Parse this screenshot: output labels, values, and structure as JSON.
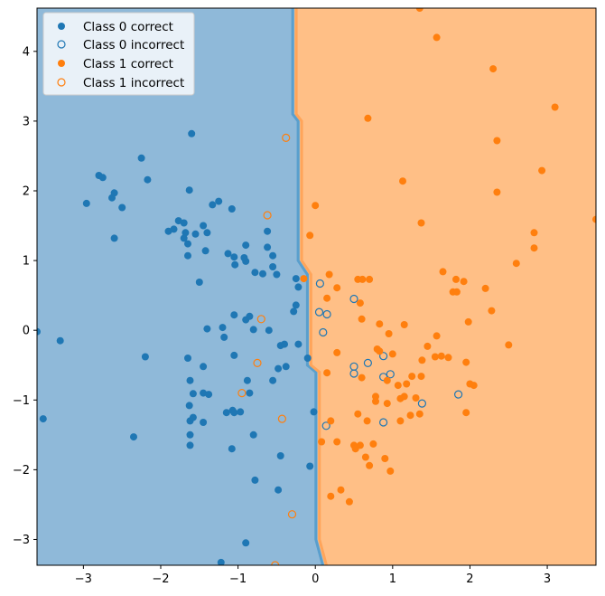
{
  "chart_data": {
    "type": "scatter",
    "title": "",
    "xlabel": "",
    "ylabel": "",
    "xlim": [
      -3.6,
      3.63
    ],
    "ylim": [
      -3.37,
      4.62
    ],
    "xticks": [
      -3,
      -2,
      -1,
      0,
      1,
      2,
      3
    ],
    "yticks": [
      -3,
      -2,
      -1,
      0,
      1,
      2,
      3,
      4
    ],
    "grid": false,
    "legend_position": "top-left",
    "colors": {
      "class0": "#1f77b4",
      "class1": "#ff7f0e",
      "region0": "#8fb9d9",
      "region1": "#ffbf86",
      "boundary0": "#5a9fcd",
      "boundary1": "#ffa55a"
    },
    "decision_boundary": [
      [
        -0.27,
        4.62
      ],
      [
        -0.27,
        3.1
      ],
      [
        -0.2,
        3.0
      ],
      [
        -0.2,
        1.0
      ],
      [
        -0.08,
        0.8
      ],
      [
        -0.08,
        -0.5
      ],
      [
        0.03,
        -0.6
      ],
      [
        0.03,
        -3.0
      ],
      [
        0.12,
        -3.37
      ]
    ],
    "series": [
      {
        "name": "Class 0 correct",
        "color": "#1f77b4",
        "marker": "filled",
        "points": [
          [
            -3.6,
            -0.02
          ],
          [
            -3.52,
            -1.27
          ],
          [
            -3.3,
            -0.15
          ],
          [
            -2.96,
            1.82
          ],
          [
            -2.8,
            2.22
          ],
          [
            -2.75,
            2.19
          ],
          [
            -2.6,
            1.32
          ],
          [
            -2.63,
            1.9
          ],
          [
            -2.6,
            1.97
          ],
          [
            -2.5,
            1.76
          ],
          [
            -2.35,
            -1.53
          ],
          [
            -2.25,
            2.47
          ],
          [
            -2.2,
            -0.38
          ],
          [
            -2.17,
            2.16
          ],
          [
            -1.9,
            1.42
          ],
          [
            -1.83,
            1.45
          ],
          [
            -1.77,
            1.57
          ],
          [
            -1.7,
            1.54
          ],
          [
            -1.7,
            1.32
          ],
          [
            -1.68,
            1.4
          ],
          [
            -1.65,
            1.24
          ],
          [
            -1.65,
            1.07
          ],
          [
            -1.63,
            2.01
          ],
          [
            -1.6,
            2.82
          ],
          [
            -1.55,
            1.38
          ],
          [
            -1.5,
            0.69
          ],
          [
            -1.45,
            1.5
          ],
          [
            -1.42,
            1.14
          ],
          [
            -1.4,
            1.4
          ],
          [
            -1.33,
            1.8
          ],
          [
            -1.25,
            1.85
          ],
          [
            -1.65,
            -0.4
          ],
          [
            -1.62,
            -0.72
          ],
          [
            -1.58,
            -0.91
          ],
          [
            -1.45,
            -0.52
          ],
          [
            -1.45,
            -0.9
          ],
          [
            -1.4,
            0.02
          ],
          [
            -1.38,
            -0.92
          ],
          [
            -1.63,
            -1.08
          ],
          [
            -1.62,
            -1.3
          ],
          [
            -1.58,
            -1.25
          ],
          [
            -1.62,
            -1.5
          ],
          [
            -1.62,
            -1.65
          ],
          [
            -1.45,
            -1.32
          ],
          [
            -1.22,
            -3.33
          ],
          [
            -1.2,
            0.04
          ],
          [
            -1.18,
            -0.1
          ],
          [
            -1.15,
            -1.18
          ],
          [
            -1.13,
            1.1
          ],
          [
            -1.08,
            1.74
          ],
          [
            -1.05,
            1.05
          ],
          [
            -1.04,
            0.94
          ],
          [
            -0.9,
            0.99
          ],
          [
            -1.05,
            0.22
          ],
          [
            -1.05,
            -0.36
          ],
          [
            -1.07,
            -1.15
          ],
          [
            -1.05,
            -1.18
          ],
          [
            -0.97,
            -1.17
          ],
          [
            -1.08,
            -1.7
          ],
          [
            -0.9,
            1.22
          ],
          [
            -0.92,
            1.04
          ],
          [
            -0.9,
            0.15
          ],
          [
            -0.85,
            0.2
          ],
          [
            -0.8,
            0.01
          ],
          [
            -0.88,
            -0.72
          ],
          [
            -0.85,
            -0.9
          ],
          [
            -0.8,
            -1.5
          ],
          [
            -0.78,
            -2.15
          ],
          [
            -0.9,
            -3.05
          ],
          [
            -0.78,
            0.83
          ],
          [
            -0.68,
            0.81
          ],
          [
            -0.62,
            1.42
          ],
          [
            -0.62,
            1.19
          ],
          [
            -0.55,
            1.07
          ],
          [
            -0.55,
            0.91
          ],
          [
            -0.5,
            0.8
          ],
          [
            -0.55,
            -0.72
          ],
          [
            -0.48,
            -0.55
          ],
          [
            -0.45,
            -0.22
          ],
          [
            -0.4,
            -0.2
          ],
          [
            -0.38,
            -0.52
          ],
          [
            -0.45,
            -1.8
          ],
          [
            -0.48,
            -2.29
          ],
          [
            -0.6,
            0.0
          ],
          [
            -0.25,
            0.74
          ],
          [
            -0.22,
            0.62
          ],
          [
            -0.25,
            0.36
          ],
          [
            -0.28,
            0.27
          ],
          [
            -0.22,
            -0.2
          ],
          [
            -0.1,
            -0.4
          ],
          [
            -0.07,
            -1.95
          ],
          [
            -0.02,
            -1.17
          ]
        ]
      },
      {
        "name": "Class 0 incorrect",
        "color": "#1f77b4",
        "marker": "hollow",
        "points": [
          [
            0.06,
            0.67
          ],
          [
            0.05,
            0.26
          ],
          [
            0.15,
            0.23
          ],
          [
            0.1,
            -0.03
          ],
          [
            0.14,
            -1.37
          ],
          [
            0.5,
            0.45
          ],
          [
            0.5,
            -0.52
          ],
          [
            0.5,
            -0.62
          ],
          [
            0.68,
            -0.47
          ],
          [
            0.88,
            -0.37
          ],
          [
            0.88,
            -0.67
          ],
          [
            0.97,
            -0.63
          ],
          [
            0.88,
            -1.32
          ],
          [
            1.38,
            -1.05
          ],
          [
            1.85,
            -0.92
          ]
        ]
      },
      {
        "name": "Class 1 correct",
        "color": "#ff7f0e",
        "marker": "filled",
        "points": [
          [
            1.35,
            4.62
          ],
          [
            1.57,
            4.2
          ],
          [
            2.3,
            3.75
          ],
          [
            3.1,
            3.2
          ],
          [
            0.68,
            3.04
          ],
          [
            2.35,
            2.72
          ],
          [
            2.93,
            2.29
          ],
          [
            1.13,
            2.14
          ],
          [
            2.35,
            1.98
          ],
          [
            0.0,
            1.79
          ],
          [
            1.37,
            1.54
          ],
          [
            3.63,
            1.59
          ],
          [
            2.83,
            1.4
          ],
          [
            -0.07,
            1.36
          ],
          [
            2.83,
            1.18
          ],
          [
            2.6,
            0.96
          ],
          [
            1.65,
            0.84
          ],
          [
            1.82,
            0.73
          ],
          [
            1.92,
            0.7
          ],
          [
            0.55,
            0.73
          ],
          [
            0.61,
            0.73
          ],
          [
            0.7,
            0.73
          ],
          [
            0.18,
            0.8
          ],
          [
            -0.15,
            0.74
          ],
          [
            2.2,
            0.6
          ],
          [
            0.28,
            0.61
          ],
          [
            1.78,
            0.55
          ],
          [
            1.83,
            0.55
          ],
          [
            0.15,
            0.46
          ],
          [
            0.58,
            0.39
          ],
          [
            2.28,
            0.28
          ],
          [
            0.6,
            0.16
          ],
          [
            1.98,
            0.12
          ],
          [
            0.83,
            0.09
          ],
          [
            1.15,
            0.08
          ],
          [
            0.95,
            -0.05
          ],
          [
            1.57,
            -0.08
          ],
          [
            0.28,
            -0.32
          ],
          [
            0.8,
            -0.27
          ],
          [
            0.83,
            -0.3
          ],
          [
            1.0,
            -0.34
          ],
          [
            1.45,
            -0.23
          ],
          [
            2.5,
            -0.21
          ],
          [
            1.55,
            -0.38
          ],
          [
            1.63,
            -0.37
          ],
          [
            1.72,
            -0.39
          ],
          [
            1.38,
            -0.43
          ],
          [
            1.95,
            -0.46
          ],
          [
            0.15,
            -0.61
          ],
          [
            0.6,
            -0.68
          ],
          [
            0.93,
            -0.72
          ],
          [
            1.07,
            -0.79
          ],
          [
            1.18,
            -0.77
          ],
          [
            1.25,
            -0.66
          ],
          [
            1.37,
            -0.66
          ],
          [
            2.0,
            -0.77
          ],
          [
            2.05,
            -0.79
          ],
          [
            0.78,
            -0.95
          ],
          [
            1.15,
            -0.95
          ],
          [
            1.1,
            -0.98
          ],
          [
            1.3,
            -0.97
          ],
          [
            0.78,
            -1.02
          ],
          [
            0.93,
            -1.05
          ],
          [
            1.35,
            -1.2
          ],
          [
            1.23,
            -1.22
          ],
          [
            1.95,
            -1.18
          ],
          [
            0.55,
            -1.2
          ],
          [
            0.2,
            -1.3
          ],
          [
            0.67,
            -1.3
          ],
          [
            1.1,
            -1.3
          ],
          [
            0.08,
            -1.6
          ],
          [
            0.28,
            -1.6
          ],
          [
            0.5,
            -1.65
          ],
          [
            0.58,
            -1.65
          ],
          [
            0.75,
            -1.63
          ],
          [
            0.52,
            -1.7
          ],
          [
            0.65,
            -1.82
          ],
          [
            0.9,
            -1.84
          ],
          [
            0.7,
            -1.94
          ],
          [
            0.97,
            -2.02
          ],
          [
            0.33,
            -2.29
          ],
          [
            0.2,
            -2.38
          ],
          [
            0.44,
            -2.46
          ]
        ]
      },
      {
        "name": "Class 1 incorrect",
        "color": "#ff7f0e",
        "marker": "hollow",
        "points": [
          [
            -0.38,
            2.76
          ],
          [
            -0.62,
            1.65
          ],
          [
            -0.7,
            0.16
          ],
          [
            -0.75,
            -0.47
          ],
          [
            -0.95,
            -0.9
          ],
          [
            -0.43,
            -1.27
          ],
          [
            -0.3,
            -2.64
          ],
          [
            -0.52,
            -3.37
          ]
        ]
      }
    ]
  }
}
